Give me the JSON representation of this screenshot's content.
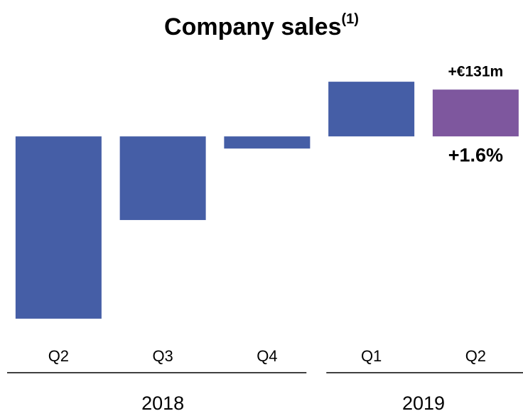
{
  "chart_data": {
    "type": "bar",
    "title": "Company sales",
    "title_note": "(1)",
    "categories": [
      "Q2",
      "Q3",
      "Q4",
      "Q1",
      "Q2"
    ],
    "values": [
      -510,
      -234,
      -34,
      153,
      131
    ],
    "value_labels": [
      null,
      null,
      null,
      null,
      "+€131m"
    ],
    "annotation": "+1.6%",
    "colors": [
      "#455ea6",
      "#455ea6",
      "#455ea6",
      "#455ea6",
      "#7e579e"
    ],
    "groups": [
      {
        "name": "2018",
        "span": 3
      },
      {
        "name": "2019",
        "span": 2
      }
    ],
    "ylim": [
      -540,
      185
    ]
  }
}
